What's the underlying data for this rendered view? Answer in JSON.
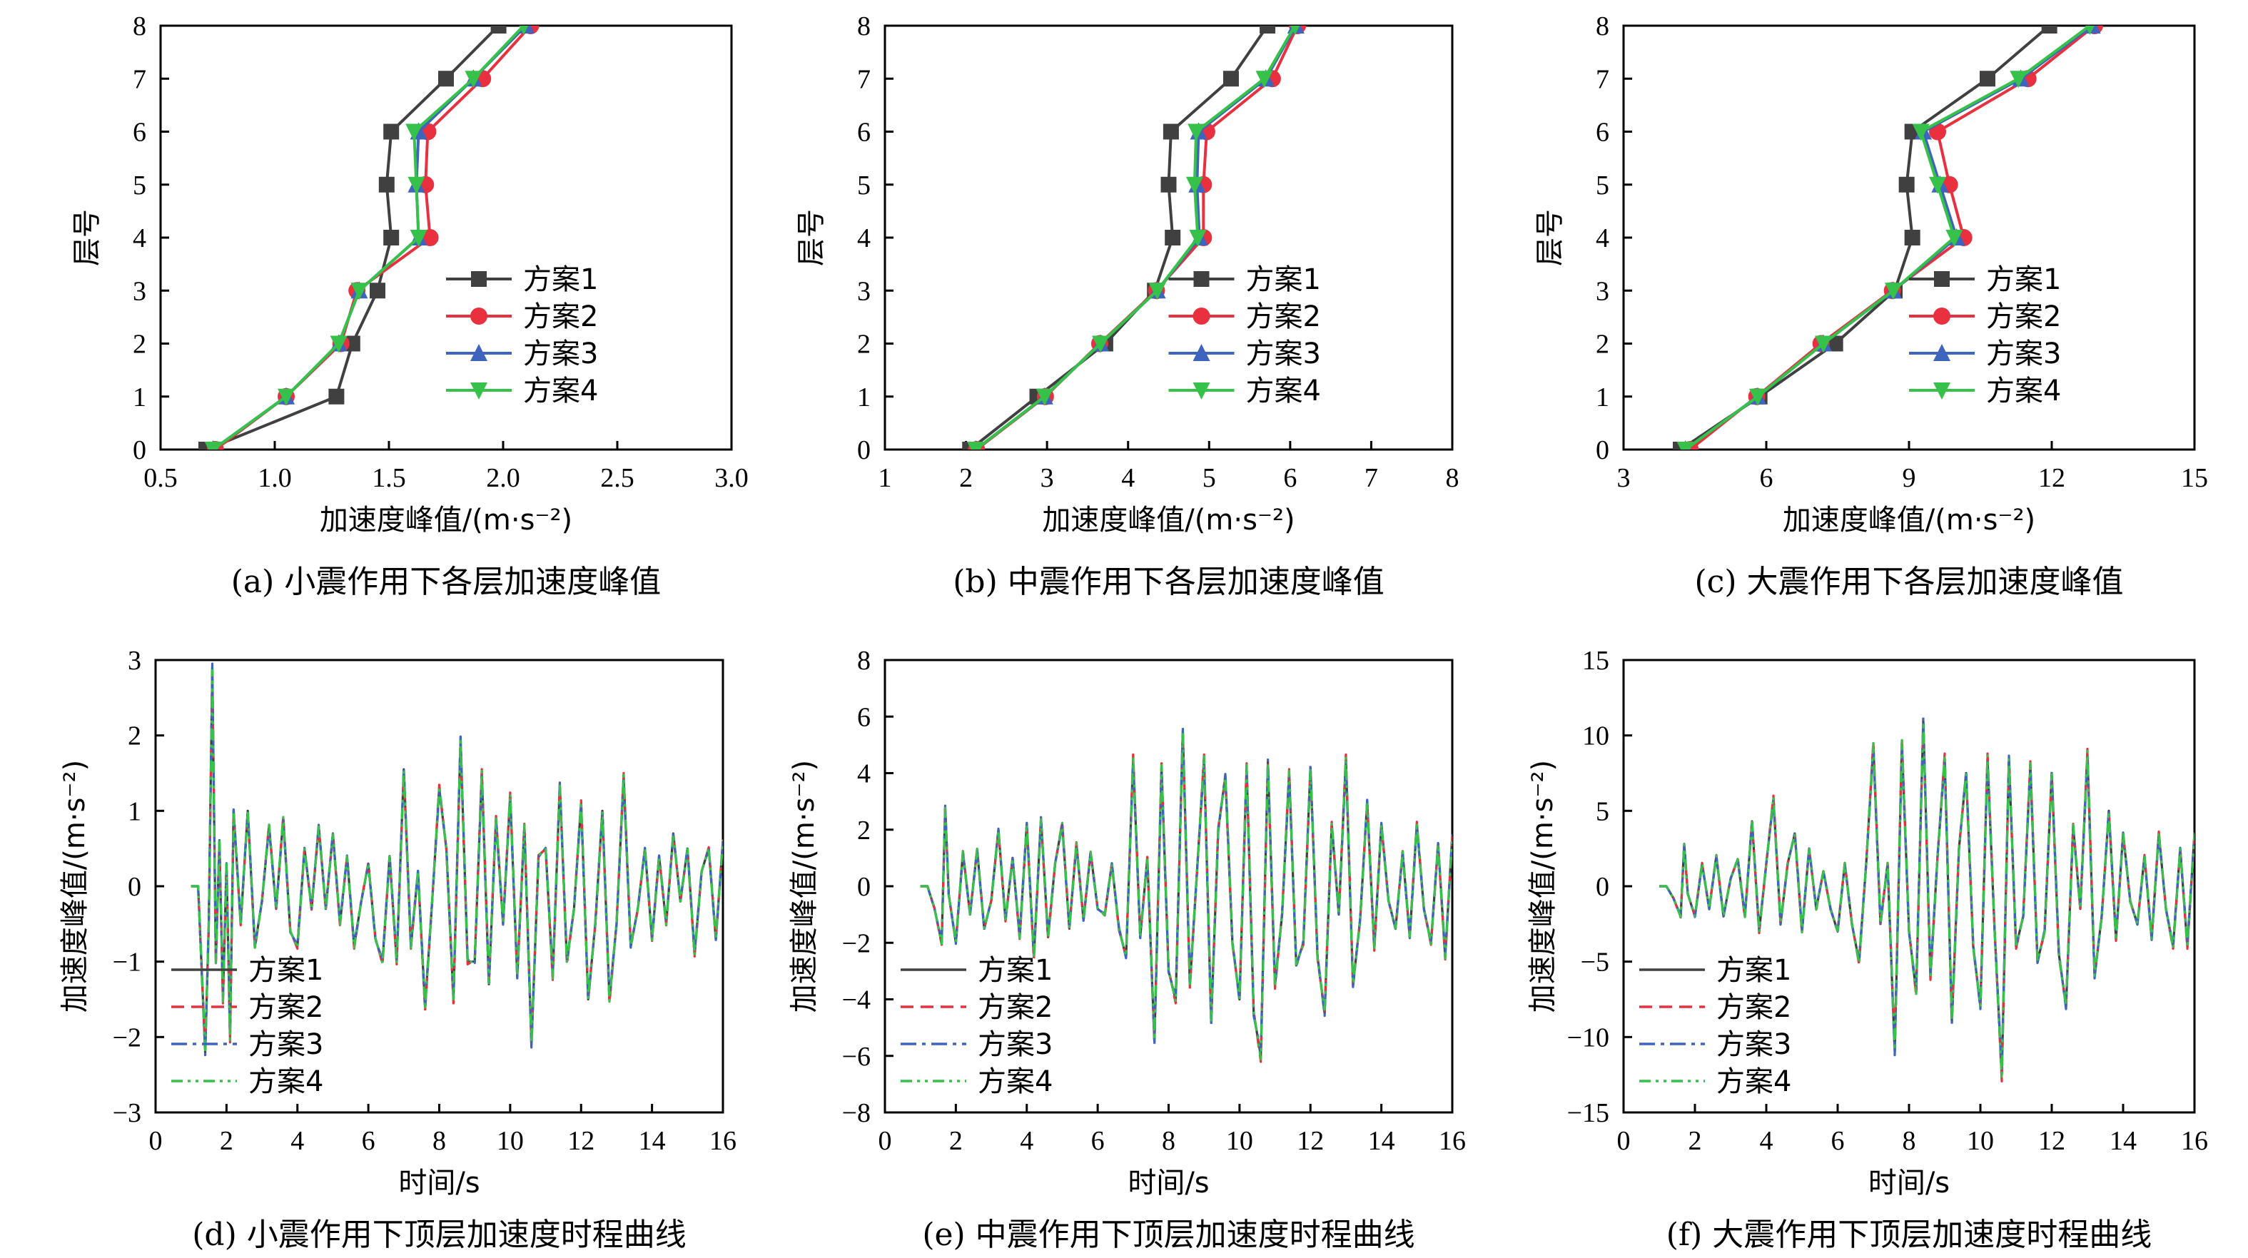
{
  "colors": {
    "s1": "#404040",
    "s2": "#e8303f",
    "s3": "#3f64be",
    "s4": "#35c14a"
  },
  "chart_data": [
    {
      "type": "line",
      "panel": "a",
      "caption": "(a) 小震作用下各层加速度峰值",
      "xlabel": "加速度峰值/(m·s⁻²)",
      "ylabel": "层号",
      "xlim": [
        0.5,
        3.0
      ],
      "ylim": [
        0,
        8
      ],
      "xticks": [
        "0.5",
        "1.0",
        "1.5",
        "2.0",
        "2.5",
        "3.0"
      ],
      "yticks": [
        "0",
        "1",
        "2",
        "3",
        "4",
        "5",
        "6",
        "7",
        "8"
      ],
      "legend": "center-right",
      "series": [
        {
          "name": "方案1",
          "marker": "square",
          "x": [
            0.7,
            1.27,
            1.34,
            1.45,
            1.51,
            1.49,
            1.51,
            1.75,
            1.98
          ],
          "y": [
            0,
            1,
            2,
            3,
            4,
            5,
            6,
            7,
            8
          ]
        },
        {
          "name": "方案2",
          "marker": "circle",
          "x": [
            0.74,
            1.05,
            1.29,
            1.36,
            1.68,
            1.66,
            1.67,
            1.91,
            2.12
          ],
          "y": [
            0,
            1,
            2,
            3,
            4,
            5,
            6,
            7,
            8
          ]
        },
        {
          "name": "方案3",
          "marker": "triangle-up",
          "x": [
            0.73,
            1.05,
            1.28,
            1.37,
            1.63,
            1.62,
            1.63,
            1.87,
            2.1
          ],
          "y": [
            0,
            1,
            2,
            3,
            4,
            5,
            6,
            7,
            8
          ]
        },
        {
          "name": "方案4",
          "marker": "triangle-down",
          "x": [
            0.73,
            1.05,
            1.28,
            1.37,
            1.63,
            1.62,
            1.61,
            1.87,
            2.09
          ],
          "y": [
            0,
            1,
            2,
            3,
            4,
            5,
            6,
            7,
            8
          ]
        }
      ]
    },
    {
      "type": "line",
      "panel": "b",
      "caption": "(b) 中震作用下各层加速度峰值",
      "xlabel": "加速度峰值/(m·s⁻²)",
      "ylabel": "层号",
      "xlim": [
        1,
        8
      ],
      "ylim": [
        0,
        8
      ],
      "xticks": [
        "1",
        "2",
        "3",
        "4",
        "5",
        "6",
        "7",
        "8"
      ],
      "yticks": [
        "0",
        "1",
        "2",
        "3",
        "4",
        "5",
        "6",
        "7",
        "8"
      ],
      "legend": "center-right",
      "series": [
        {
          "name": "方案1",
          "marker": "square",
          "x": [
            2.05,
            2.88,
            3.72,
            4.33,
            4.55,
            4.5,
            4.53,
            5.27,
            5.72
          ],
          "y": [
            0,
            1,
            2,
            3,
            4,
            5,
            6,
            7,
            8
          ]
        },
        {
          "name": "方案2",
          "marker": "circle",
          "x": [
            2.13,
            2.98,
            3.65,
            4.35,
            4.93,
            4.93,
            4.97,
            5.78,
            6.09
          ],
          "y": [
            0,
            1,
            2,
            3,
            4,
            5,
            6,
            7,
            8
          ]
        },
        {
          "name": "方案3",
          "marker": "triangle-up",
          "x": [
            2.12,
            2.97,
            3.66,
            4.36,
            4.88,
            4.85,
            4.87,
            5.7,
            6.07
          ],
          "y": [
            0,
            1,
            2,
            3,
            4,
            5,
            6,
            7,
            8
          ]
        },
        {
          "name": "方案4",
          "marker": "triangle-down",
          "x": [
            2.12,
            2.97,
            3.66,
            4.36,
            4.86,
            4.82,
            4.84,
            5.68,
            6.06
          ],
          "y": [
            0,
            1,
            2,
            3,
            4,
            5,
            6,
            7,
            8
          ]
        }
      ]
    },
    {
      "type": "line",
      "panel": "c",
      "caption": "(c) 大震作用下各层加速度峰值",
      "xlabel": "加速度峰值/(m·s⁻²)",
      "ylabel": "层号",
      "xlim": [
        3,
        15
      ],
      "ylim": [
        0,
        8
      ],
      "xticks": [
        "3",
        "6",
        "9",
        "12",
        "15"
      ],
      "yticks": [
        "0",
        "1",
        "2",
        "3",
        "4",
        "5",
        "6",
        "7",
        "8"
      ],
      "legend": "center-right",
      "series": [
        {
          "name": "方案1",
          "marker": "square",
          "x": [
            4.2,
            5.86,
            7.45,
            8.7,
            9.07,
            8.95,
            9.07,
            10.65,
            11.95
          ],
          "y": [
            0,
            1,
            2,
            3,
            4,
            5,
            6,
            7,
            8
          ]
        },
        {
          "name": "方案2",
          "marker": "circle",
          "x": [
            4.4,
            5.8,
            7.15,
            8.65,
            10.15,
            9.85,
            9.6,
            11.5,
            12.9
          ],
          "y": [
            0,
            1,
            2,
            3,
            4,
            5,
            6,
            7,
            8
          ]
        },
        {
          "name": "方案3",
          "marker": "triangle-up",
          "x": [
            4.3,
            5.82,
            7.2,
            8.67,
            10.0,
            9.65,
            9.3,
            11.35,
            12.85
          ],
          "y": [
            0,
            1,
            2,
            3,
            4,
            5,
            6,
            7,
            8
          ]
        },
        {
          "name": "方案4",
          "marker": "triangle-down",
          "x": [
            4.3,
            5.82,
            7.2,
            8.67,
            9.95,
            9.6,
            9.25,
            11.3,
            12.8
          ],
          "y": [
            0,
            1,
            2,
            3,
            4,
            5,
            6,
            7,
            8
          ]
        }
      ]
    },
    {
      "type": "line",
      "panel": "d",
      "caption": "(d) 小震作用下顶层加速度时程曲线",
      "xlabel": "时间/s",
      "ylabel": "加速度峰值/(m·s⁻²)",
      "xlim": [
        0,
        16
      ],
      "ylim": [
        -3,
        3
      ],
      "xticks": [
        "0",
        "2",
        "4",
        "6",
        "8",
        "10",
        "12",
        "14",
        "16"
      ],
      "yticks": [
        "−3",
        "−2",
        "−1",
        "0",
        "1",
        "2",
        "3"
      ],
      "legend": "lower-left",
      "series_names": [
        "方案1",
        "方案2",
        "方案3",
        "方案4"
      ],
      "series_styles": [
        "solid",
        "dashed",
        "dash-dot",
        "dash-dot-dot"
      ],
      "x": [
        1.0,
        1.2,
        1.4,
        1.5,
        1.6,
        1.7,
        1.8,
        1.9,
        2.0,
        2.1,
        2.2,
        2.4,
        2.6,
        2.8,
        3.0,
        3.2,
        3.4,
        3.6,
        3.8,
        4.0,
        4.2,
        4.4,
        4.6,
        4.8,
        5.0,
        5.2,
        5.4,
        5.6,
        5.8,
        6.0,
        6.2,
        6.4,
        6.6,
        6.8,
        7.0,
        7.2,
        7.4,
        7.6,
        7.8,
        8.0,
        8.2,
        8.4,
        8.6,
        8.8,
        9.0,
        9.2,
        9.4,
        9.6,
        9.8,
        10.0,
        10.2,
        10.4,
        10.6,
        10.8,
        11.0,
        11.2,
        11.4,
        11.6,
        11.8,
        12.0,
        12.2,
        12.4,
        12.6,
        12.8,
        13.0,
        13.2,
        13.4,
        13.6,
        13.8,
        14.0,
        14.2,
        14.4,
        14.6,
        14.8,
        15.0,
        15.2,
        15.4,
        15.6,
        15.8,
        16.0
      ],
      "y": [
        0.0,
        0.0,
        -2.2,
        -0.5,
        2.9,
        -1.0,
        0.6,
        -1.5,
        0.3,
        -2.0,
        1.0,
        -0.5,
        1.0,
        -0.8,
        -0.2,
        0.8,
        -0.3,
        0.9,
        -0.6,
        -0.8,
        0.5,
        -0.3,
        0.8,
        -0.3,
        0.7,
        -0.5,
        0.4,
        -0.8,
        -0.2,
        0.3,
        -0.7,
        -1.0,
        0.4,
        -1.0,
        1.55,
        -0.8,
        0.2,
        -1.6,
        -0.2,
        1.3,
        0.5,
        -1.5,
        1.95,
        -1.0,
        -1.0,
        1.5,
        -1.3,
        0.9,
        -0.5,
        1.2,
        -1.2,
        0.8,
        -2.1,
        0.4,
        0.5,
        -1.2,
        1.35,
        -1.0,
        -0.3,
        1.1,
        -1.5,
        -0.5,
        1.0,
        -1.5,
        -0.5,
        1.45,
        -0.8,
        -0.3,
        0.5,
        -0.7,
        0.4,
        -0.5,
        0.7,
        -0.2,
        0.5,
        -0.9,
        0.2,
        0.5,
        -0.7,
        0.6
      ]
    },
    {
      "type": "line",
      "panel": "e",
      "caption": "(e) 中震作用下顶层加速度时程曲线",
      "xlabel": "时间/s",
      "ylabel": "加速度峰值/(m·s⁻²)",
      "xlim": [
        0,
        16
      ],
      "ylim": [
        -8,
        8
      ],
      "xticks": [
        "0",
        "2",
        "4",
        "6",
        "8",
        "10",
        "12",
        "14",
        "16"
      ],
      "yticks": [
        "−8",
        "−6",
        "−4",
        "−2",
        "0",
        "2",
        "4",
        "6",
        "8"
      ],
      "legend": "lower-left",
      "series_names": [
        "方案1",
        "方案2",
        "方案3",
        "方案4"
      ],
      "series_styles": [
        "solid",
        "dashed",
        "dash-dot",
        "dash-dot-dot"
      ],
      "x": [
        1.0,
        1.2,
        1.4,
        1.6,
        1.7,
        1.8,
        2.0,
        2.2,
        2.4,
        2.6,
        2.8,
        3.0,
        3.2,
        3.4,
        3.6,
        3.8,
        4.0,
        4.2,
        4.4,
        4.6,
        4.8,
        5.0,
        5.2,
        5.4,
        5.6,
        5.8,
        6.0,
        6.2,
        6.4,
        6.6,
        6.8,
        7.0,
        7.2,
        7.4,
        7.6,
        7.8,
        8.0,
        8.2,
        8.4,
        8.6,
        8.8,
        9.0,
        9.2,
        9.4,
        9.6,
        9.8,
        10.0,
        10.2,
        10.4,
        10.6,
        10.8,
        11.0,
        11.2,
        11.4,
        11.6,
        11.8,
        12.0,
        12.2,
        12.4,
        12.6,
        12.8,
        13.0,
        13.2,
        13.4,
        13.6,
        13.8,
        14.0,
        14.2,
        14.4,
        14.6,
        14.8,
        15.0,
        15.2,
        15.4,
        15.6,
        15.8,
        16.0
      ],
      "y": [
        0.0,
        0.0,
        -0.8,
        -2.0,
        2.8,
        -0.3,
        -2.0,
        1.2,
        -1.0,
        1.3,
        -1.5,
        -0.5,
        2.0,
        -1.2,
        1.0,
        -1.8,
        2.2,
        -2.5,
        2.4,
        -1.8,
        0.8,
        2.2,
        -1.5,
        1.5,
        -1.2,
        1.2,
        -0.8,
        -1.0,
        0.8,
        -1.5,
        -2.5,
        4.5,
        -1.8,
        1.0,
        -5.5,
        4.2,
        -3.0,
        -4.0,
        5.5,
        -3.5,
        0.5,
        4.5,
        -4.8,
        2.0,
        3.9,
        -2.0,
        -4.0,
        4.2,
        -4.5,
        -6.0,
        4.4,
        -3.5,
        -1.0,
        4.0,
        -2.8,
        -2.0,
        4.2,
        -2.5,
        -4.5,
        2.2,
        -1.0,
        4.5,
        -3.5,
        -1.2,
        3.0,
        -2.2,
        2.2,
        -0.5,
        -1.5,
        1.2,
        -1.8,
        2.2,
        -0.8,
        -2.0,
        1.5,
        -2.5,
        1.8
      ]
    },
    {
      "type": "line",
      "panel": "f",
      "caption": "(f) 大震作用下顶层加速度时程曲线",
      "xlabel": "时间/s",
      "ylabel": "加速度峰值/(m·s⁻²)",
      "xlim": [
        0,
        16
      ],
      "ylim": [
        -15,
        15
      ],
      "xticks": [
        "0",
        "2",
        "4",
        "6",
        "8",
        "10",
        "12",
        "14",
        "16"
      ],
      "yticks": [
        "−15",
        "−10",
        "−5",
        "0",
        "5",
        "10",
        "15"
      ],
      "legend": "lower-left",
      "series_names": [
        "方案1",
        "方案2",
        "方案3",
        "方案4"
      ],
      "series_styles": [
        "solid",
        "dashed",
        "dash-dot",
        "dash-dot-dot"
      ],
      "x": [
        1.0,
        1.2,
        1.4,
        1.6,
        1.7,
        1.8,
        2.0,
        2.2,
        2.4,
        2.6,
        2.8,
        3.0,
        3.2,
        3.4,
        3.6,
        3.8,
        4.0,
        4.2,
        4.4,
        4.6,
        4.8,
        5.0,
        5.2,
        5.4,
        5.6,
        5.8,
        6.0,
        6.2,
        6.4,
        6.6,
        6.8,
        7.0,
        7.2,
        7.4,
        7.6,
        7.8,
        8.0,
        8.2,
        8.4,
        8.6,
        8.8,
        9.0,
        9.2,
        9.4,
        9.6,
        9.8,
        10.0,
        10.2,
        10.4,
        10.6,
        10.8,
        11.0,
        11.2,
        11.4,
        11.6,
        11.8,
        12.0,
        12.2,
        12.4,
        12.6,
        12.8,
        13.0,
        13.2,
        13.4,
        13.6,
        13.8,
        14.0,
        14.2,
        14.4,
        14.6,
        14.8,
        15.0,
        15.2,
        15.4,
        15.6,
        15.8,
        16.0
      ],
      "y": [
        0.0,
        0.0,
        -0.8,
        -2.0,
        2.8,
        -0.5,
        -2.0,
        1.5,
        -1.5,
        2.0,
        -2.0,
        0.5,
        1.8,
        -2.0,
        4.3,
        -3.0,
        1.5,
        5.8,
        -2.5,
        1.5,
        3.5,
        -3.0,
        2.5,
        -1.5,
        1.0,
        -1.5,
        -3.0,
        1.5,
        -2.5,
        -5.0,
        1.5,
        9.3,
        -2.5,
        1.5,
        -11.0,
        9.5,
        -3.0,
        -7.0,
        11.0,
        -6.0,
        2.0,
        8.5,
        -9.0,
        2.5,
        7.5,
        -4.0,
        -8.0,
        8.5,
        -3.0,
        -12.5,
        8.5,
        -4.0,
        -2.0,
        8.0,
        -5.0,
        -3.0,
        7.5,
        -4.5,
        -8.0,
        4.0,
        -1.5,
        8.8,
        -6.0,
        -2.0,
        5.0,
        -3.5,
        3.5,
        -1.0,
        -2.5,
        2.0,
        -3.5,
        3.5,
        -1.5,
        -4.0,
        2.5,
        -4.0,
        3.5
      ]
    }
  ]
}
